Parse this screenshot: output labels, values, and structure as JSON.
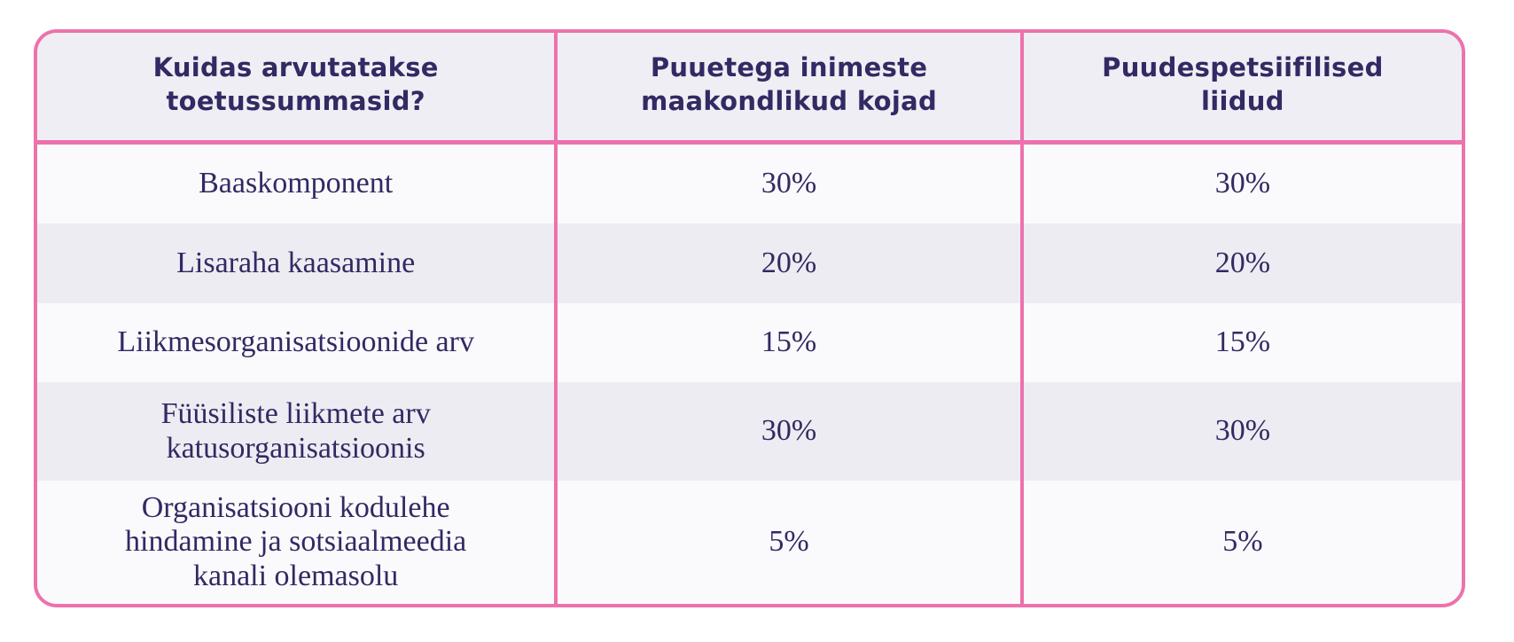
{
  "colors": {
    "border_pink": "#EC72AC",
    "text_navy": "#312A63",
    "header_background": "#EFEEF4",
    "row_background_light": "#FAFAFC",
    "row_background_shaded": "#EDECF2"
  },
  "table": {
    "columns": [
      "Kuidas arvutatakse\ntoetussummasid?",
      "Puuetega inimeste\nmaakondlikud kojad",
      "Puudespetsiifilised\nliidud"
    ],
    "rows": [
      {
        "label": "Baaskomponent",
        "values": [
          "30%",
          "30%"
        ]
      },
      {
        "label": "Lisaraha kaasamine",
        "values": [
          "20%",
          "20%"
        ]
      },
      {
        "label": "Liikmesorganisatsioonide arv",
        "values": [
          "15%",
          "15%"
        ]
      },
      {
        "label": "Füüsiliste liikmete arv\nkatusorganisatsioonis",
        "values": [
          "30%",
          "30%"
        ]
      },
      {
        "label": "Organisatsiooni kodulehe\nhindamine ja sotsiaalmeedia\nkanali olemasolu",
        "values": [
          "5%",
          "5%"
        ]
      }
    ]
  },
  "chart_data": {
    "type": "table",
    "title": "Kuidas arvutatakse toetussummasid?",
    "columns": [
      "Kuidas arvutatakse toetussummasid?",
      "Puuetega inimeste maakondlikud kojad",
      "Puudespetsiifilised liidud"
    ],
    "rows": [
      [
        "Baaskomponent",
        "30%",
        "30%"
      ],
      [
        "Lisaraha kaasamine",
        "20%",
        "20%"
      ],
      [
        "Liikmesorganisatsioonide arv",
        "15%",
        "15%"
      ],
      [
        "Füüsiliste liikmete arv katusorganisatsioonis",
        "30%",
        "30%"
      ],
      [
        "Organisatsiooni kodulehe hindamine ja sotsiaalmeedia kanali olemasolu",
        "5%",
        "5%"
      ]
    ]
  }
}
